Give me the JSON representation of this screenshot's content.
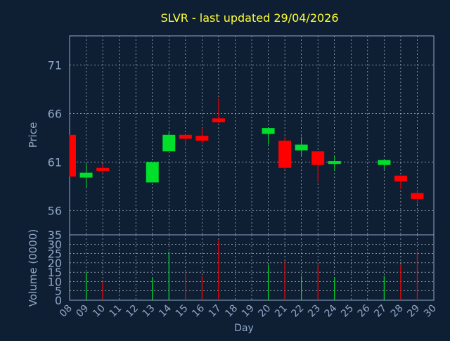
{
  "chart_data": {
    "type": "candlestick",
    "title": "SLVR - last updated 29/04/2026",
    "xlabel": "Day",
    "price_ylabel": "Price",
    "volume_ylabel": "Volume (0000)",
    "price_ylim": [
      53.5,
      74
    ],
    "price_yticks": [
      "56",
      "61",
      "66",
      "71"
    ],
    "volume_ylim": [
      0,
      35
    ],
    "volume_yticks": [
      "0",
      "5",
      "10",
      "15",
      "20",
      "25",
      "30",
      "35"
    ],
    "xlim": [
      8,
      30
    ],
    "x_ticks": [
      "08",
      "09",
      "10",
      "11",
      "12",
      "13",
      "14",
      "15",
      "16",
      "17",
      "18",
      "19",
      "20",
      "21",
      "22",
      "23",
      "24",
      "25",
      "26",
      "27",
      "28",
      "29",
      "30"
    ],
    "grid": true,
    "colors": {
      "background": "#0f1f33",
      "axis": "#8fa8c8",
      "grid": "#cfd8e3",
      "title": "#ffff33",
      "up": "#00e02a",
      "down": "#ff0000",
      "tick_label": "#8fa8c8"
    },
    "candles": [
      {
        "day": 8,
        "open": 63.8,
        "high": 63.8,
        "low": 59.5,
        "close": 59.5
      },
      {
        "day": 9,
        "open": 59.4,
        "high": 60.8,
        "low": 58.4,
        "close": 59.9
      },
      {
        "day": 10,
        "open": 60.4,
        "high": 60.8,
        "low": 59.8,
        "close": 60.1
      },
      {
        "day": 13,
        "open": 58.9,
        "high": 61.0,
        "low": 58.9,
        "close": 61.0
      },
      {
        "day": 14,
        "open": 62.1,
        "high": 64.1,
        "low": 62.1,
        "close": 63.8
      },
      {
        "day": 15,
        "open": 63.8,
        "high": 63.8,
        "low": 62.6,
        "close": 63.4
      },
      {
        "day": 16,
        "open": 63.7,
        "high": 64.5,
        "low": 62.9,
        "close": 63.2
      },
      {
        "day": 17,
        "open": 65.5,
        "high": 67.6,
        "low": 65.0,
        "close": 65.1
      },
      {
        "day": 20,
        "open": 63.9,
        "high": 64.6,
        "low": 62.8,
        "close": 64.5
      },
      {
        "day": 21,
        "open": 63.2,
        "high": 63.6,
        "low": 60.3,
        "close": 60.4
      },
      {
        "day": 22,
        "open": 62.2,
        "high": 63.6,
        "low": 61.6,
        "close": 62.8
      },
      {
        "day": 23,
        "open": 62.1,
        "high": 62.1,
        "low": 58.9,
        "close": 60.7
      },
      {
        "day": 24,
        "open": 60.8,
        "high": 61.6,
        "low": 60.1,
        "close": 61.1
      },
      {
        "day": 27,
        "open": 60.7,
        "high": 61.3,
        "low": 60.2,
        "close": 61.2
      },
      {
        "day": 28,
        "open": 59.6,
        "high": 59.6,
        "low": 58.2,
        "close": 59.0
      },
      {
        "day": 29,
        "open": 57.8,
        "high": 58.1,
        "low": 56.6,
        "close": 57.2
      }
    ],
    "volume": [
      {
        "day": 9,
        "value": 15,
        "dir": "up"
      },
      {
        "day": 10,
        "value": 10,
        "dir": "down"
      },
      {
        "day": 13,
        "value": 12,
        "dir": "up"
      },
      {
        "day": 14,
        "value": 26,
        "dir": "up"
      },
      {
        "day": 15,
        "value": 15,
        "dir": "down"
      },
      {
        "day": 16,
        "value": 13,
        "dir": "down"
      },
      {
        "day": 17,
        "value": 32,
        "dir": "down"
      },
      {
        "day": 20,
        "value": 19,
        "dir": "up"
      },
      {
        "day": 21,
        "value": 21,
        "dir": "down"
      },
      {
        "day": 22,
        "value": 13,
        "dir": "up"
      },
      {
        "day": 23,
        "value": 19,
        "dir": "down"
      },
      {
        "day": 24,
        "value": 12,
        "dir": "up"
      },
      {
        "day": 27,
        "value": 13,
        "dir": "up"
      },
      {
        "day": 28,
        "value": 19,
        "dir": "down"
      },
      {
        "day": 29,
        "value": 26,
        "dir": "down"
      }
    ]
  }
}
